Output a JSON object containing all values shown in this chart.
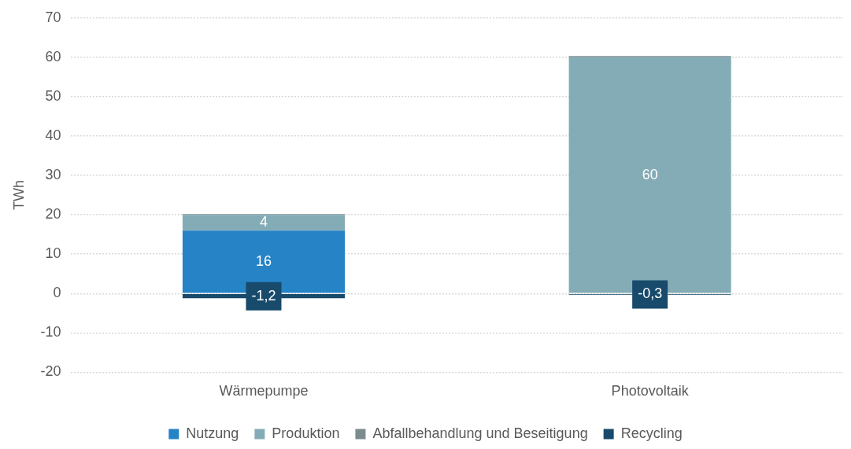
{
  "chart_data": {
    "type": "bar",
    "ylabel": "TWh",
    "categories": [
      "Wärmepumpe",
      "Photovoltaik"
    ],
    "stacked": true,
    "series": [
      {
        "name": "Nutzung",
        "color": "#2683c6",
        "values": [
          16,
          0
        ],
        "value_labels": [
          "16",
          null
        ]
      },
      {
        "name": "Produktion",
        "color": "#84acb6",
        "values": [
          4,
          60
        ],
        "value_labels": [
          "4",
          "60"
        ]
      },
      {
        "name": "Abfallbehandlung und Beseitigung",
        "color": "#7a8c8e",
        "values": [
          0.2,
          0.3
        ]
      },
      {
        "name": "Recycling",
        "color": "#174a6b",
        "values": [
          -1.2,
          -0.3
        ],
        "value_labels": [
          "-1,2",
          "-0,3"
        ]
      }
    ],
    "ylim": [
      -20,
      70
    ],
    "yticks": [
      -20,
      -10,
      0,
      10,
      20,
      30,
      40,
      50,
      60,
      70
    ],
    "grid": "y",
    "legend": "bottom"
  }
}
